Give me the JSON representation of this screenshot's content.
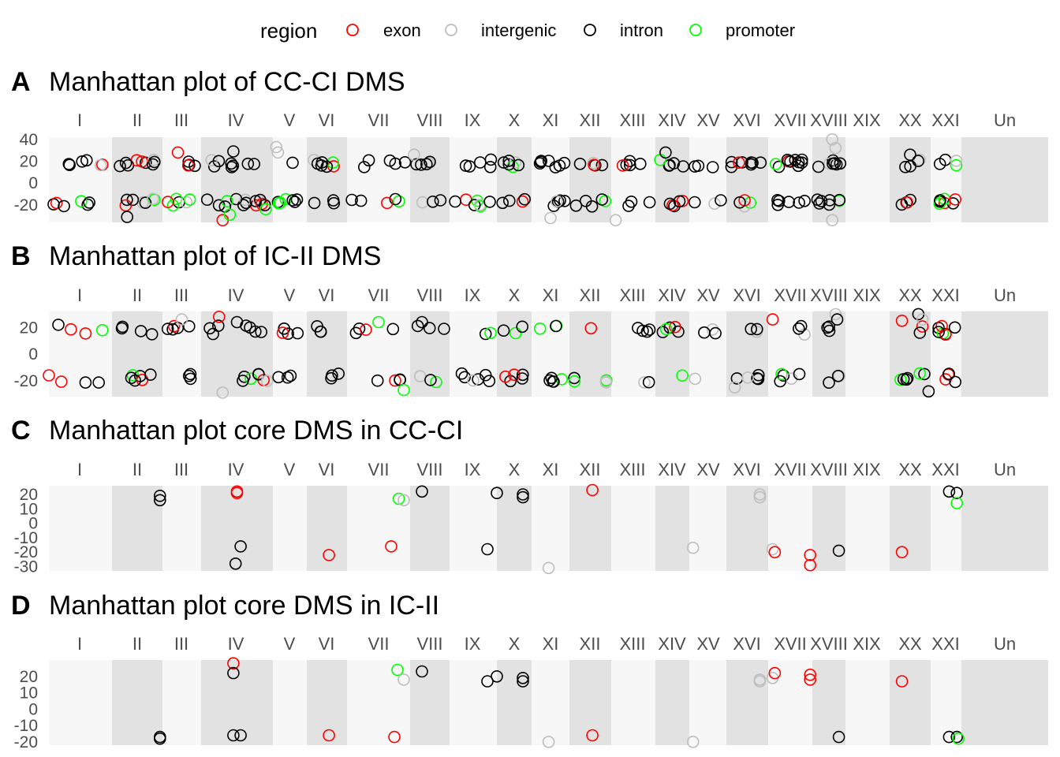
{
  "legend": {
    "title": "region",
    "items": [
      {
        "label": "exon",
        "color": "#ff0000"
      },
      {
        "label": "intergenic",
        "color": "#bebebe"
      },
      {
        "label": "intron",
        "color": "#000000"
      },
      {
        "label": "promoter",
        "color": "#00ff00"
      }
    ]
  },
  "colors": {
    "exon": "#ff0000",
    "intergenic": "#bebebe",
    "intron": "#000000",
    "promoter": "#00ff00",
    "band_light": "#f7f7f7",
    "band_dark": "#e2e2e2"
  },
  "chart_data": [
    {
      "type": "scatter",
      "tag": "A",
      "title": "Manhattan plot of CC-CI DMS",
      "chromosomes": [
        "I",
        "II",
        "III",
        "IV",
        "V",
        "VI",
        "VII",
        "VIII",
        "IX",
        "X",
        "XI",
        "XII",
        "XIII",
        "XIV",
        "XV",
        "XVI",
        "XVII",
        "XVIII",
        "XIX",
        "XX",
        "XXI",
        "Un"
      ],
      "yticks": [
        40,
        20,
        0,
        -20
      ],
      "ylim": [
        -36,
        42
      ],
      "chr_density": [
        12,
        16,
        10,
        22,
        8,
        10,
        10,
        8,
        12,
        10,
        12,
        10,
        8,
        10,
        6,
        12,
        16,
        14,
        0,
        8,
        10,
        0
      ],
      "points": [
        {
          "chr": "II",
          "pos": 0.3,
          "y": -31,
          "region": "intron"
        },
        {
          "chr": "III",
          "pos": 0.4,
          "y": 28,
          "region": "exon"
        },
        {
          "chr": "IV",
          "pos": 0.3,
          "y": -34,
          "region": "exon"
        },
        {
          "chr": "IV",
          "pos": 0.4,
          "y": -29,
          "region": "promoter"
        },
        {
          "chr": "IV",
          "pos": 0.45,
          "y": 29,
          "region": "intron"
        },
        {
          "chr": "IV",
          "pos": 0.9,
          "y": -24,
          "region": "promoter"
        },
        {
          "chr": "V",
          "pos": 0.1,
          "y": 33,
          "region": "intergenic"
        },
        {
          "chr": "V",
          "pos": 0.15,
          "y": 28,
          "region": "intergenic"
        },
        {
          "chr": "VIII",
          "pos": 0.1,
          "y": 26,
          "region": "intergenic"
        },
        {
          "chr": "XI",
          "pos": 0.5,
          "y": -32,
          "region": "intergenic"
        },
        {
          "chr": "XIII",
          "pos": 0.1,
          "y": -34,
          "region": "intergenic"
        },
        {
          "chr": "XIV",
          "pos": 0.3,
          "y": 28,
          "region": "intron"
        },
        {
          "chr": "XVIII",
          "pos": 0.6,
          "y": 40,
          "region": "intergenic"
        },
        {
          "chr": "XVIII",
          "pos": 0.7,
          "y": 32,
          "region": "intergenic"
        },
        {
          "chr": "XVIII",
          "pos": 0.6,
          "y": -34,
          "region": "intergenic"
        },
        {
          "chr": "XX",
          "pos": 0.5,
          "y": 26,
          "region": "intron"
        },
        {
          "chr": "XXI",
          "pos": 0.8,
          "y": -15,
          "region": "exon"
        }
      ]
    },
    {
      "type": "scatter",
      "tag": "B",
      "title": "Manhattan plot of IC-II DMS",
      "chromosomes": [
        "I",
        "II",
        "III",
        "IV",
        "V",
        "VI",
        "VII",
        "VIII",
        "IX",
        "X",
        "XI",
        "XII",
        "XIII",
        "XIV",
        "XV",
        "XVI",
        "XVII",
        "XVIII",
        "XIX",
        "XX",
        "XXI",
        "Un"
      ],
      "yticks": [
        20,
        0,
        -20
      ],
      "ylim": [
        -32,
        32
      ],
      "chr_density": [
        6,
        10,
        8,
        14,
        8,
        6,
        8,
        6,
        8,
        8,
        8,
        6,
        6,
        6,
        4,
        8,
        8,
        6,
        0,
        8,
        10,
        0
      ],
      "points": [
        {
          "chr": "I",
          "pos": 0.15,
          "y": 22,
          "region": "intron"
        },
        {
          "chr": "III",
          "pos": 0.5,
          "y": 26,
          "region": "intergenic"
        },
        {
          "chr": "IV",
          "pos": 0.25,
          "y": 28,
          "region": "exon"
        },
        {
          "chr": "IV",
          "pos": 0.3,
          "y": -29,
          "region": "intergenic"
        },
        {
          "chr": "IV",
          "pos": 0.5,
          "y": 24,
          "region": "intron"
        },
        {
          "chr": "VII",
          "pos": 0.5,
          "y": 24,
          "region": "promoter"
        },
        {
          "chr": "VII",
          "pos": 0.9,
          "y": -27,
          "region": "promoter"
        },
        {
          "chr": "VIII",
          "pos": 0.3,
          "y": 24,
          "region": "intron"
        },
        {
          "chr": "XVI",
          "pos": 0.2,
          "y": -25,
          "region": "intergenic"
        },
        {
          "chr": "XVII",
          "pos": 0.1,
          "y": 26,
          "region": "exon"
        },
        {
          "chr": "XVIII",
          "pos": 0.7,
          "y": 30,
          "region": "intergenic"
        },
        {
          "chr": "XVIII",
          "pos": 0.75,
          "y": 26,
          "region": "intron"
        },
        {
          "chr": "XX",
          "pos": 0.3,
          "y": 25,
          "region": "exon"
        },
        {
          "chr": "XX",
          "pos": 0.7,
          "y": 30,
          "region": "intron"
        },
        {
          "chr": "XX",
          "pos": 0.8,
          "y": 26,
          "region": "intergenic"
        },
        {
          "chr": "XX",
          "pos": 0.95,
          "y": -28,
          "region": "intron"
        },
        {
          "chr": "I",
          "pos": 0.0,
          "y": -16,
          "region": "exon"
        },
        {
          "chr": "XXI",
          "pos": 0.8,
          "y": -21,
          "region": "intron"
        }
      ]
    },
    {
      "type": "scatter",
      "tag": "C",
      "title": "Manhattan plot core DMS in CC-CI",
      "chromosomes": [
        "I",
        "II",
        "III",
        "IV",
        "V",
        "VI",
        "VII",
        "VIII",
        "IX",
        "X",
        "XI",
        "XII",
        "XIII",
        "XIV",
        "XV",
        "XVI",
        "XVII",
        "XVIII",
        "XIX",
        "XX",
        "XXI",
        "Un"
      ],
      "yticks": [
        20,
        10,
        0,
        -10,
        -20,
        -30
      ],
      "ylim": [
        -33,
        26
      ],
      "chr_density": [],
      "points": [
        {
          "chr": "II",
          "pos": 0.95,
          "y": 19,
          "region": "intron"
        },
        {
          "chr": "II",
          "pos": 0.95,
          "y": 16,
          "region": "intron"
        },
        {
          "chr": "IV",
          "pos": 0.5,
          "y": 22,
          "region": "exon"
        },
        {
          "chr": "IV",
          "pos": 0.5,
          "y": 21,
          "region": "exon"
        },
        {
          "chr": "IV",
          "pos": 0.55,
          "y": -16,
          "region": "intron"
        },
        {
          "chr": "IV",
          "pos": 0.48,
          "y": -28,
          "region": "intron"
        },
        {
          "chr": "VI",
          "pos": 0.55,
          "y": -22,
          "region": "exon"
        },
        {
          "chr": "VII",
          "pos": 0.7,
          "y": -16,
          "region": "exon"
        },
        {
          "chr": "VII",
          "pos": 0.82,
          "y": 17,
          "region": "promoter"
        },
        {
          "chr": "VII",
          "pos": 0.9,
          "y": 16,
          "region": "intergenic"
        },
        {
          "chr": "VIII",
          "pos": 0.3,
          "y": 22,
          "region": "intron"
        },
        {
          "chr": "IX",
          "pos": 0.8,
          "y": -18,
          "region": "intron"
        },
        {
          "chr": "X",
          "pos": 0.0,
          "y": 21,
          "region": "intron"
        },
        {
          "chr": "X",
          "pos": 0.75,
          "y": 20,
          "region": "intron"
        },
        {
          "chr": "X",
          "pos": 0.75,
          "y": 18,
          "region": "intron"
        },
        {
          "chr": "XI",
          "pos": 0.45,
          "y": -31,
          "region": "intergenic"
        },
        {
          "chr": "XII",
          "pos": 0.55,
          "y": 23,
          "region": "exon"
        },
        {
          "chr": "XV",
          "pos": 0.1,
          "y": -17,
          "region": "intergenic"
        },
        {
          "chr": "XVI",
          "pos": 0.8,
          "y": 20,
          "region": "intergenic"
        },
        {
          "chr": "XVI",
          "pos": 0.8,
          "y": 18,
          "region": "intergenic"
        },
        {
          "chr": "XVII",
          "pos": 0.1,
          "y": -18,
          "region": "intergenic"
        },
        {
          "chr": "XVII",
          "pos": 0.15,
          "y": -20,
          "region": "exon"
        },
        {
          "chr": "XVII",
          "pos": 0.95,
          "y": -22,
          "region": "exon"
        },
        {
          "chr": "XVII",
          "pos": 0.95,
          "y": -29,
          "region": "exon"
        },
        {
          "chr": "XVIII",
          "pos": 0.8,
          "y": -19,
          "region": "intron"
        },
        {
          "chr": "XX",
          "pos": 0.3,
          "y": -20,
          "region": "exon"
        },
        {
          "chr": "XXI",
          "pos": 0.6,
          "y": 22,
          "region": "intron"
        },
        {
          "chr": "XXI",
          "pos": 0.85,
          "y": 21,
          "region": "intron"
        },
        {
          "chr": "XXI",
          "pos": 0.85,
          "y": 14,
          "region": "promoter"
        }
      ]
    },
    {
      "type": "scatter",
      "tag": "D",
      "title": "Manhattan plot core DMS in IC-II",
      "chromosomes": [
        "I",
        "II",
        "III",
        "IV",
        "V",
        "VI",
        "VII",
        "VIII",
        "IX",
        "X",
        "XI",
        "XII",
        "XIII",
        "XIV",
        "XV",
        "XVI",
        "XVII",
        "XVIII",
        "XIX",
        "XX",
        "XXI",
        "Un"
      ],
      "yticks": [
        20,
        10,
        0,
        -10,
        -20
      ],
      "ylim": [
        -22,
        30
      ],
      "chr_density": [],
      "points": [
        {
          "chr": "II",
          "pos": 0.95,
          "y": -17,
          "region": "intron"
        },
        {
          "chr": "II",
          "pos": 0.95,
          "y": -18,
          "region": "intron"
        },
        {
          "chr": "IV",
          "pos": 0.45,
          "y": 28,
          "region": "exon"
        },
        {
          "chr": "IV",
          "pos": 0.45,
          "y": 22,
          "region": "intron"
        },
        {
          "chr": "IV",
          "pos": 0.45,
          "y": -16,
          "region": "intron"
        },
        {
          "chr": "IV",
          "pos": 0.55,
          "y": -16,
          "region": "intron"
        },
        {
          "chr": "VI",
          "pos": 0.55,
          "y": -16,
          "region": "exon"
        },
        {
          "chr": "VII",
          "pos": 0.75,
          "y": -17,
          "region": "exon"
        },
        {
          "chr": "VII",
          "pos": 0.8,
          "y": 24,
          "region": "promoter"
        },
        {
          "chr": "VII",
          "pos": 0.9,
          "y": 18,
          "region": "intergenic"
        },
        {
          "chr": "VIII",
          "pos": 0.3,
          "y": 23,
          "region": "intron"
        },
        {
          "chr": "IX",
          "pos": 0.8,
          "y": 17,
          "region": "intron"
        },
        {
          "chr": "X",
          "pos": 0.0,
          "y": 20,
          "region": "intron"
        },
        {
          "chr": "X",
          "pos": 0.75,
          "y": 19,
          "region": "intron"
        },
        {
          "chr": "X",
          "pos": 0.75,
          "y": 17,
          "region": "intron"
        },
        {
          "chr": "XI",
          "pos": 0.45,
          "y": -20,
          "region": "intergenic"
        },
        {
          "chr": "XII",
          "pos": 0.55,
          "y": -16,
          "region": "exon"
        },
        {
          "chr": "XV",
          "pos": 0.1,
          "y": -20,
          "region": "intergenic"
        },
        {
          "chr": "XVI",
          "pos": 0.8,
          "y": 18,
          "region": "intergenic"
        },
        {
          "chr": "XVI",
          "pos": 0.8,
          "y": 17,
          "region": "intergenic"
        },
        {
          "chr": "XVII",
          "pos": 0.1,
          "y": 19,
          "region": "intergenic"
        },
        {
          "chr": "XVII",
          "pos": 0.15,
          "y": 22,
          "region": "exon"
        },
        {
          "chr": "XVII",
          "pos": 0.95,
          "y": 21,
          "region": "exon"
        },
        {
          "chr": "XVII",
          "pos": 0.95,
          "y": 18,
          "region": "exon"
        },
        {
          "chr": "XVIII",
          "pos": 0.8,
          "y": -17,
          "region": "intron"
        },
        {
          "chr": "XX",
          "pos": 0.3,
          "y": 17,
          "region": "exon"
        },
        {
          "chr": "XXI",
          "pos": 0.6,
          "y": -17,
          "region": "intron"
        },
        {
          "chr": "XXI",
          "pos": 0.85,
          "y": -17,
          "region": "intron"
        },
        {
          "chr": "XXI",
          "pos": 0.9,
          "y": -18,
          "region": "promoter"
        }
      ]
    }
  ]
}
